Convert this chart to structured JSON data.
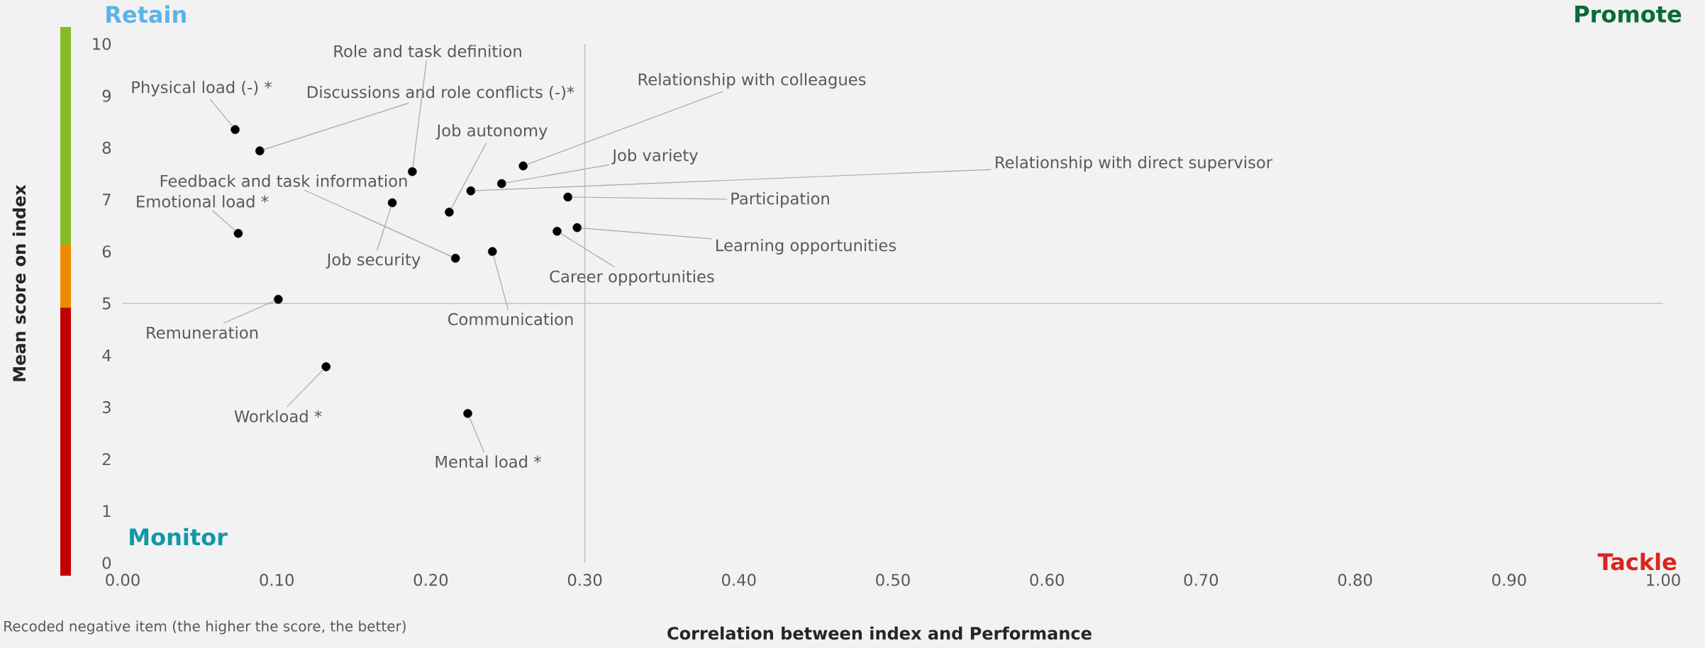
{
  "chart_data": {
    "type": "scatter",
    "xlabel": "Correlation between index and Performance",
    "ylabel": "Mean score on index",
    "series": [
      {
        "color": "#000000",
        "x": [
          0.073,
          0.089,
          0.188,
          0.216,
          0.175,
          0.075,
          0.212,
          0.226,
          0.246,
          0.26,
          0.289,
          0.295,
          0.282,
          0.24,
          0.101,
          0.132,
          0.224
        ],
        "values": [
          8.35,
          7.94,
          7.54,
          5.87,
          6.94,
          6.35,
          6.76,
          7.17,
          7.31,
          7.65,
          7.05,
          6.46,
          6.39,
          6.0,
          5.08,
          3.78,
          2.88
        ]
      }
    ],
    "marker": "circle",
    "xlim": [
      0,
      1
    ],
    "ylim": [
      0,
      10
    ],
    "xticks": [
      {
        "value": 0,
        "label": "0.00"
      },
      {
        "value": 0.1,
        "label": "0.10"
      },
      {
        "value": 0.2,
        "label": "0.20"
      },
      {
        "value": 0.3,
        "label": "0.30"
      },
      {
        "value": 0.4,
        "label": "0.40"
      },
      {
        "value": 0.5,
        "label": "0.50"
      },
      {
        "value": 0.6,
        "label": "0.60"
      },
      {
        "value": 0.7,
        "label": "0.70"
      },
      {
        "value": 0.8,
        "label": "0.80"
      },
      {
        "value": 0.9,
        "label": "0.90"
      },
      {
        "value": 1,
        "label": "1.00"
      }
    ],
    "yticks": [
      0,
      1,
      2,
      3,
      4,
      5,
      6,
      7,
      8,
      9,
      10
    ],
    "ref_lines": [
      {
        "axis": "x",
        "value": 0.3,
        "color": "#bfbfbf"
      },
      {
        "axis": "y",
        "value": 5,
        "color": "#bfbfbf"
      }
    ],
    "annotations": [
      {
        "text": "Physical load (-) *",
        "x": 0.073,
        "y": 8.35
      },
      {
        "text": "Discussions and role conflicts (-)*",
        "x": 0.089,
        "y": 7.94
      },
      {
        "text": "Role and task definition",
        "x": 0.188,
        "y": 7.54
      },
      {
        "text": "Feedback and task information",
        "x": 0.216,
        "y": 5.87
      },
      {
        "text": "Job security",
        "x": 0.175,
        "y": 6.94
      },
      {
        "text": "Emotional load *",
        "x": 0.075,
        "y": 6.35
      },
      {
        "text": "Job autonomy",
        "x": 0.212,
        "y": 6.76
      },
      {
        "text": "Relationship with direct supervisor",
        "x": 0.226,
        "y": 7.17
      },
      {
        "text": "Job variety",
        "x": 0.246,
        "y": 7.31
      },
      {
        "text": "Relationship with colleagues",
        "x": 0.26,
        "y": 7.65
      },
      {
        "text": "Participation",
        "x": 0.289,
        "y": 7.05
      },
      {
        "text": "Learning opportunities",
        "x": 0.295,
        "y": 6.46
      },
      {
        "text": "Career opportunities",
        "x": 0.282,
        "y": 6.39
      },
      {
        "text": "Communication",
        "x": 0.24,
        "y": 6.0
      },
      {
        "text": "Remuneration",
        "x": 0.101,
        "y": 5.08
      },
      {
        "text": "Workload *",
        "x": 0.132,
        "y": 3.78
      },
      {
        "text": "Mental load *",
        "x": 0.224,
        "y": 2.88
      },
      "Retain",
      "Promote",
      "Monitor",
      "Tackle",
      "Recoded negative item (the higher the score, the better)"
    ]
  }
}
